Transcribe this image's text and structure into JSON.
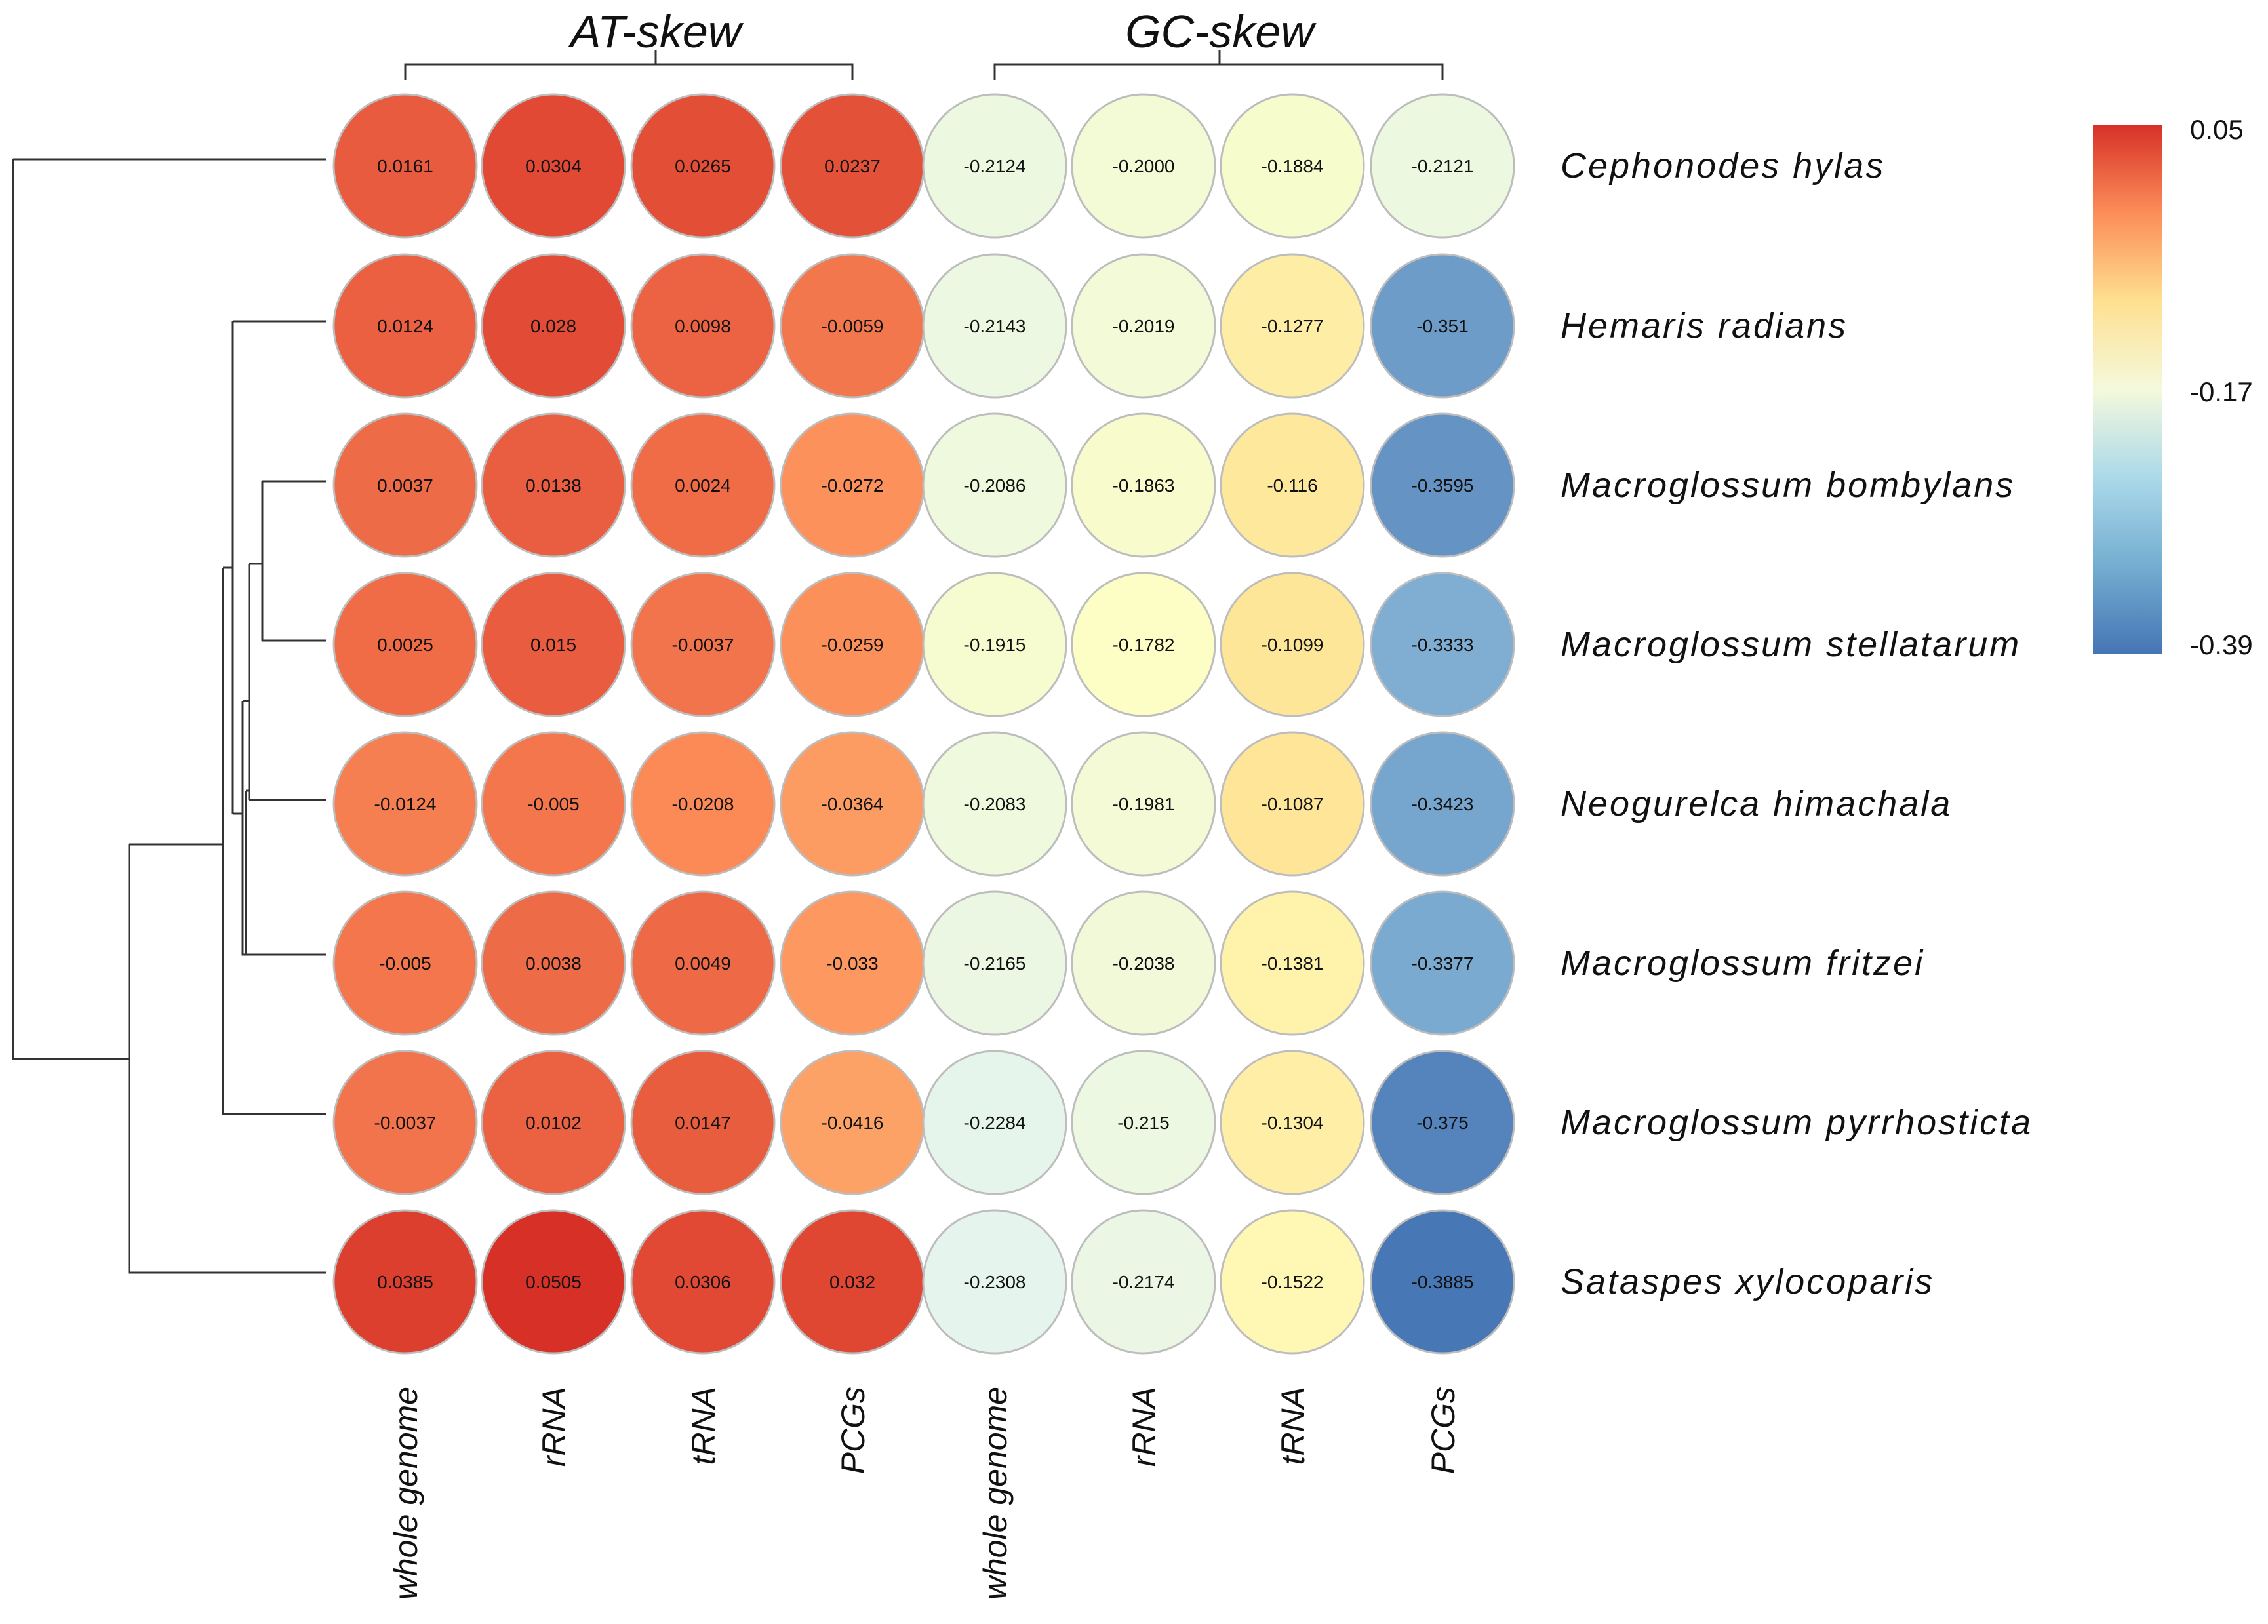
{
  "chart_data": {
    "type": "heatmap",
    "title": "",
    "column_groups": [
      {
        "name": "AT-skew",
        "columns": [
          "whole genome",
          "rRNA",
          "tRNA",
          "PCGs"
        ]
      },
      {
        "name": "GC-skew",
        "columns": [
          "whole genome",
          "rRNA",
          "tRNA",
          "PCGs"
        ]
      }
    ],
    "columns": [
      "whole genome",
      "rRNA",
      "tRNA",
      "PCGs",
      "whole genome",
      "rRNA",
      "tRNA",
      "PCGs"
    ],
    "rows": [
      "Cephonodes hylas",
      "Hemaris radians",
      "Macroglossum bombylans",
      "Macroglossum stellatarum",
      "Neogurelca himachala",
      "Macroglossum fritzei",
      "Macroglossum pyrrhosticta",
      "Sataspes xylocoparis"
    ],
    "values": [
      [
        0.0161,
        0.0304,
        0.0265,
        0.0237,
        -0.2124,
        -0.2,
        -0.1884,
        -0.2121
      ],
      [
        0.0124,
        0.028,
        0.0098,
        -0.0059,
        -0.2143,
        -0.2019,
        -0.1277,
        -0.351
      ],
      [
        0.0037,
        0.0138,
        0.0024,
        -0.0272,
        -0.2086,
        -0.1863,
        -0.116,
        -0.3595
      ],
      [
        0.0025,
        0.015,
        -0.0037,
        -0.0259,
        -0.1915,
        -0.1782,
        -0.1099,
        -0.3333
      ],
      [
        -0.0124,
        -0.005,
        -0.0208,
        -0.0364,
        -0.2083,
        -0.1981,
        -0.1087,
        -0.3423
      ],
      [
        -0.005,
        0.0038,
        0.0049,
        -0.033,
        -0.2165,
        -0.2038,
        -0.1381,
        -0.3377
      ],
      [
        -0.0037,
        0.0102,
        0.0147,
        -0.0416,
        -0.2284,
        -0.215,
        -0.1304,
        -0.375
      ],
      [
        0.0385,
        0.0505,
        0.0306,
        0.032,
        -0.2308,
        -0.2174,
        -0.1522,
        -0.3885
      ]
    ],
    "value_labels": [
      [
        "0.0161",
        "0.0304",
        "0.0265",
        "0.0237",
        "-0.2124",
        "-0.2000",
        "-0.1884",
        "-0.2121"
      ],
      [
        "0.0124",
        "0.028",
        "0.0098",
        "-0.0059",
        "-0.2143",
        "-0.2019",
        "-0.1277",
        "-0.351"
      ],
      [
        "0.0037",
        "0.0138",
        "0.0024",
        "-0.0272",
        "-0.2086",
        "-0.1863",
        "-0.116",
        "-0.3595"
      ],
      [
        "0.0025",
        "0.015",
        "-0.0037",
        "-0.0259",
        "-0.1915",
        "-0.1782",
        "-0.1099",
        "-0.3333"
      ],
      [
        "-0.0124",
        "-0.005",
        "-0.0208",
        "-0.0364",
        "-0.2083",
        "-0.1981",
        "-0.1087",
        "-0.3423"
      ],
      [
        "-0.005",
        "0.0038",
        "0.0049",
        "-0.033",
        "-0.2165",
        "-0.2038",
        "-0.1381",
        "-0.3377"
      ],
      [
        "-0.0037",
        "0.0102",
        "0.0147",
        "-0.0416",
        "-0.2284",
        "-0.215",
        "-0.1304",
        "-0.375"
      ],
      [
        "0.0385",
        "0.0505",
        "0.0306",
        "0.032",
        "-0.2308",
        "-0.2174",
        "-0.1522",
        "-0.3885"
      ]
    ],
    "color_scale": {
      "min": -0.39,
      "mid": -0.17,
      "max": 0.05,
      "tick_labels": [
        "0.05",
        "-0.17",
        "-0.39"
      ],
      "colors": [
        "#4575b4",
        "#91bfdb",
        "#e0f3f8",
        "#ffffbf",
        "#fee090",
        "#fc8d59",
        "#d73027"
      ],
      "legend_position": "right"
    },
    "dendrogram": "row clustering tree on the left"
  }
}
